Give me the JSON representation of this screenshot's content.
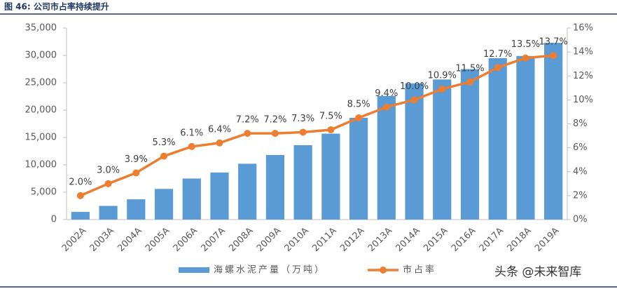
{
  "chart_data": {
    "type": "combo",
    "title": "图 46: 公司市占率持续提升",
    "watermark": "头条 @未来智库",
    "categories": [
      "2002A",
      "2003A",
      "2004A",
      "2005A",
      "2006A",
      "2007A",
      "2008A",
      "2009A",
      "2010A",
      "2011A",
      "2012A",
      "2013A",
      "2014A",
      "2015A",
      "2016A",
      "2017A",
      "2018A",
      "2019A"
    ],
    "series": [
      {
        "name": "海螺水泥产量（万吨）",
        "type": "bar",
        "color": "#5b9bd5",
        "values": [
          1400,
          2500,
          3700,
          5600,
          7500,
          8600,
          10200,
          11800,
          13600,
          15700,
          18600,
          22600,
          24900,
          25600,
          27500,
          29500,
          29900,
          32300
        ]
      },
      {
        "name": "市占率",
        "type": "line",
        "axis": "y2",
        "color": "#ed7d31",
        "values": [
          2.0,
          3.0,
          3.9,
          5.3,
          6.1,
          6.4,
          7.2,
          7.2,
          7.3,
          7.5,
          8.5,
          9.4,
          10.0,
          10.9,
          11.5,
          12.7,
          13.5,
          13.7
        ],
        "value_labels": [
          "2.0%",
          "3.0%",
          "3.9%",
          "5.3%",
          "6.1%",
          "6.4%",
          "7.2%",
          "7.2%",
          "7.3%",
          "7.5%",
          "8.5%",
          "9.4%",
          "10.0%",
          "10.9%",
          "11.5%",
          "12.7%",
          "13.5%",
          "13.7%"
        ]
      }
    ],
    "ylim": [
      0,
      35000
    ],
    "yticks": [
      0,
      {
        "value": 5000,
        "label": "5,000"
      },
      {
        "value": 10000,
        "label": "10,000"
      },
      {
        "value": 15000,
        "label": "15,000"
      },
      {
        "value": 20000,
        "label": "20,000"
      },
      {
        "value": 25000,
        "label": "25,000"
      },
      {
        "value": 30000,
        "label": "30,000"
      },
      {
        "value": 35000,
        "label": "35,000"
      }
    ],
    "y2lim": [
      0,
      16
    ],
    "y2ticks": [
      {
        "value": 0,
        "label": "0%"
      },
      {
        "value": 2,
        "label": "2%"
      },
      {
        "value": 4,
        "label": "4%"
      },
      {
        "value": 6,
        "label": "6%"
      },
      {
        "value": 8,
        "label": "8%"
      },
      {
        "value": 10,
        "label": "10%"
      },
      {
        "value": 12,
        "label": "12%"
      },
      {
        "value": 14,
        "label": "14%"
      },
      {
        "value": 16,
        "label": "16%"
      }
    ],
    "legend": "bottom"
  }
}
